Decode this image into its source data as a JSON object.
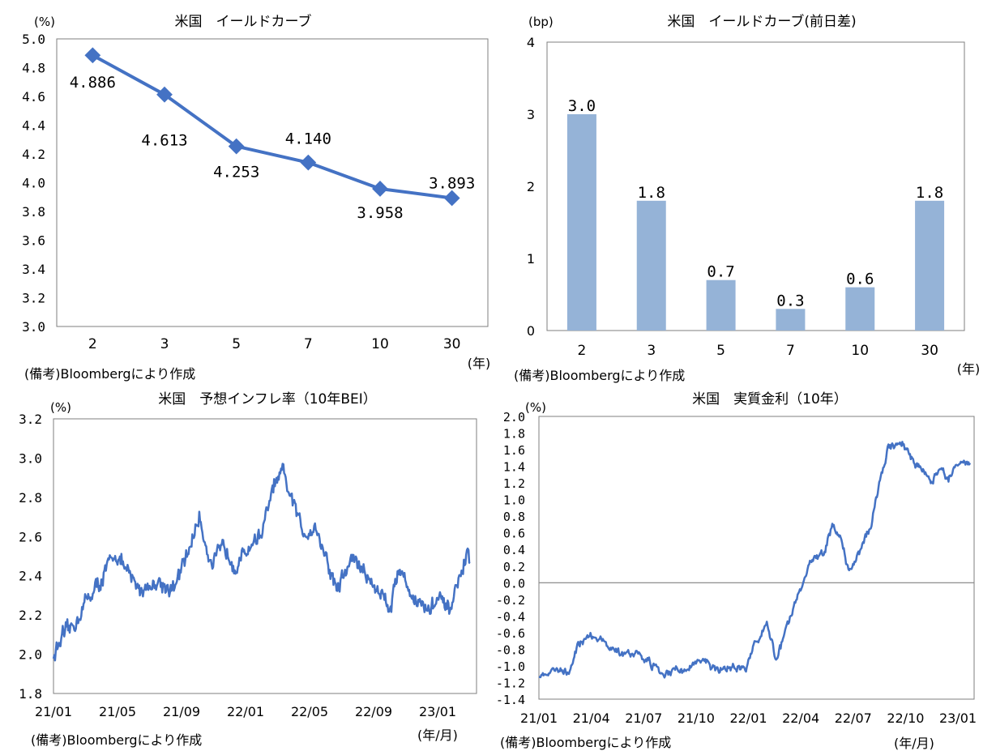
{
  "colors": {
    "line": "#4472C4",
    "bar": "#95B3D7",
    "axis": "#7f7f7f",
    "zero": "#808080"
  },
  "chart_data": [
    {
      "type": "line",
      "title": "米国　イールドカーブ",
      "ylabel": "(%)",
      "xunit": "(年)",
      "categories": [
        "2",
        "3",
        "5",
        "7",
        "10",
        "30"
      ],
      "values": [
        4.886,
        4.613,
        4.253,
        4.14,
        3.958,
        3.893
      ],
      "data_labels": [
        "4.886",
        "4.613",
        "4.253",
        "4.140",
        "3.958",
        "3.893"
      ],
      "ylim": [
        3.0,
        5.0
      ],
      "yticks": [
        "3.0",
        "3.2",
        "3.4",
        "3.6",
        "3.8",
        "4.0",
        "4.2",
        "4.4",
        "4.6",
        "4.8",
        "5.0"
      ],
      "note": "(備考)Bloombergにより作成"
    },
    {
      "type": "bar",
      "title": "米国　イールドカーブ(前日差)",
      "ylabel": "(bp)",
      "xunit": "(年)",
      "categories": [
        "2",
        "3",
        "5",
        "7",
        "10",
        "30"
      ],
      "values": [
        3.0,
        1.8,
        0.7,
        0.3,
        0.6,
        1.8
      ],
      "data_labels": [
        "3.0",
        "1.8",
        "0.7",
        "0.3",
        "0.6",
        "1.8"
      ],
      "ylim": [
        0,
        4
      ],
      "yticks": [
        "0",
        "1",
        "2",
        "3",
        "4"
      ],
      "note": "(備考)Bloombergにより作成"
    },
    {
      "type": "line",
      "title": "米国　予想インフレ率（10年BEI）",
      "ylabel": "(%)",
      "xunit": "(年/月)",
      "xticks": [
        "21/01",
        "21/05",
        "21/09",
        "22/01",
        "22/05",
        "22/09",
        "23/01"
      ],
      "ylim": [
        1.8,
        3.2
      ],
      "yticks": [
        "1.8",
        "2.0",
        "2.2",
        "2.4",
        "2.6",
        "2.8",
        "3.0",
        "3.2"
      ],
      "anchors": [
        [
          0,
          1.99
        ],
        [
          0.02,
          2.08
        ],
        [
          0.05,
          2.15
        ],
        [
          0.08,
          2.28
        ],
        [
          0.11,
          2.36
        ],
        [
          0.15,
          2.52
        ],
        [
          0.18,
          2.4
        ],
        [
          0.21,
          2.33
        ],
        [
          0.25,
          2.37
        ],
        [
          0.29,
          2.33
        ],
        [
          0.32,
          2.5
        ],
        [
          0.35,
          2.7
        ],
        [
          0.38,
          2.45
        ],
        [
          0.41,
          2.55
        ],
        [
          0.44,
          2.45
        ],
        [
          0.47,
          2.55
        ],
        [
          0.5,
          2.62
        ],
        [
          0.53,
          2.86
        ],
        [
          0.55,
          2.92
        ],
        [
          0.57,
          2.8
        ],
        [
          0.6,
          2.62
        ],
        [
          0.63,
          2.65
        ],
        [
          0.66,
          2.45
        ],
        [
          0.68,
          2.33
        ],
        [
          0.72,
          2.5
        ],
        [
          0.75,
          2.4
        ],
        [
          0.79,
          2.3
        ],
        [
          0.81,
          2.25
        ],
        [
          0.83,
          2.45
        ],
        [
          0.86,
          2.3
        ],
        [
          0.9,
          2.22
        ],
        [
          0.92,
          2.28
        ],
        [
          0.95,
          2.22
        ],
        [
          0.97,
          2.35
        ],
        [
          0.99,
          2.49
        ],
        [
          1.0,
          2.48
        ]
      ],
      "note": "(備考)Bloombergにより作成"
    },
    {
      "type": "line",
      "title": "米国　実質金利（10年）",
      "ylabel": "(%)",
      "xunit": "(年/月)",
      "xticks": [
        "21/01",
        "21/04",
        "21/07",
        "21/10",
        "22/01",
        "22/04",
        "22/07",
        "22/10",
        "23/01"
      ],
      "ylim": [
        -1.4,
        2.0
      ],
      "yticks": [
        "-1.4",
        "-1.2",
        "-1.0",
        "-0.8",
        "-0.6",
        "-0.4",
        "-0.2",
        "0.0",
        "0.2",
        "0.4",
        "0.6",
        "0.8",
        "1.0",
        "1.2",
        "1.4",
        "1.6",
        "1.8",
        "2.0"
      ],
      "anchors": [
        [
          0,
          -1.12
        ],
        [
          0.04,
          -1.05
        ],
        [
          0.07,
          -1.05
        ],
        [
          0.09,
          -0.75
        ],
        [
          0.12,
          -0.63
        ],
        [
          0.15,
          -0.72
        ],
        [
          0.19,
          -0.85
        ],
        [
          0.23,
          -0.85
        ],
        [
          0.26,
          -0.98
        ],
        [
          0.29,
          -1.12
        ],
        [
          0.32,
          -1.05
        ],
        [
          0.35,
          -1.02
        ],
        [
          0.38,
          -0.92
        ],
        [
          0.41,
          -1.05
        ],
        [
          0.45,
          -1.02
        ],
        [
          0.48,
          -1.02
        ],
        [
          0.5,
          -0.75
        ],
        [
          0.53,
          -0.48
        ],
        [
          0.55,
          -0.95
        ],
        [
          0.58,
          -0.45
        ],
        [
          0.61,
          -0.05
        ],
        [
          0.63,
          0.28
        ],
        [
          0.66,
          0.35
        ],
        [
          0.68,
          0.7
        ],
        [
          0.7,
          0.55
        ],
        [
          0.72,
          0.1
        ],
        [
          0.74,
          0.35
        ],
        [
          0.77,
          0.7
        ],
        [
          0.79,
          1.2
        ],
        [
          0.81,
          1.62
        ],
        [
          0.84,
          1.7
        ],
        [
          0.87,
          1.45
        ],
        [
          0.89,
          1.35
        ],
        [
          0.91,
          1.22
        ],
        [
          0.93,
          1.35
        ],
        [
          0.95,
          1.22
        ],
        [
          0.97,
          1.45
        ],
        [
          1.0,
          1.45
        ]
      ],
      "note": "(備考)Bloombergにより作成"
    }
  ]
}
